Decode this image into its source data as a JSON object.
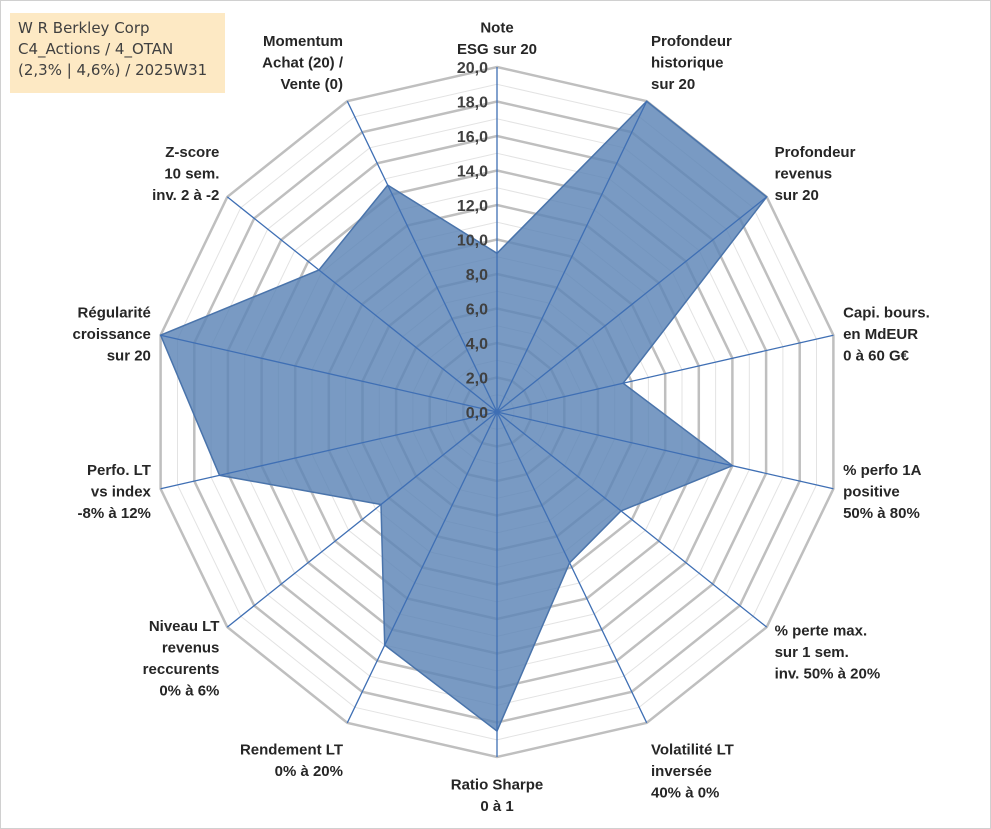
{
  "title_box": {
    "line1": "W R Berkley Corp",
    "line2": "C4_Actions / 4_OTAN",
    "line3": "(2,3% | 4,6%) / 2025W31"
  },
  "chart_data": {
    "type": "radar",
    "rlim": [
      0,
      20
    ],
    "grid": true,
    "ticks": [
      "0,0",
      "2,0",
      "4,0",
      "6,0",
      "8,0",
      "10,0",
      "12,0",
      "14,0",
      "16,0",
      "18,0",
      "20,0"
    ],
    "axes": [
      {
        "label": [
          "Note",
          "ESG sur 20"
        ],
        "value": 9.2
      },
      {
        "label": [
          "Profondeur",
          "historique",
          "sur 20"
        ],
        "value": 20
      },
      {
        "label": [
          "Profondeur",
          "revenus",
          "sur 20"
        ],
        "value": 20
      },
      {
        "label": [
          "Capi. bours.",
          "en MdEUR",
          "0 à 60 G€"
        ],
        "value": 7.5
      },
      {
        "label": [
          "% perfo 1A",
          "positive",
          "50% à 80%"
        ],
        "value": 14
      },
      {
        "label": [
          "% perte max.",
          "sur 1 sem.",
          "inv. 50% à 20%"
        ],
        "value": 9.2
      },
      {
        "label": [
          "Volatilité LT",
          "inversée",
          "40% à 0%"
        ],
        "value": 9.7
      },
      {
        "label": [
          "Ratio Sharpe",
          "0 à 1"
        ],
        "value": 18.5
      },
      {
        "label": [
          "Rendement LT",
          "0% à 20%"
        ],
        "value": 15
      },
      {
        "label": [
          "Niveau LT",
          "revenus",
          "reccurents",
          "0% à 6%"
        ],
        "value": 8.6
      },
      {
        "label": [
          "Perfo. LT",
          "vs index",
          "-8% à 12%"
        ],
        "value": 16.5
      },
      {
        "label": [
          "Régularité",
          "croissance",
          "sur 20"
        ],
        "value": 20
      },
      {
        "label": [
          "Z-score",
          "10 sem.",
          "inv. 2 à -2"
        ],
        "value": 13.2
      },
      {
        "label": [
          "Momentum",
          "Achat (20) /",
          "Vente (0)"
        ],
        "value": 14.6
      }
    ],
    "colors": {
      "fill": "#5b84b6",
      "stroke": "#4a74ab",
      "spoke": "#3f6fb4",
      "grid_major": "#bfbfbf",
      "grid_minor": "#e3e3e3"
    }
  }
}
